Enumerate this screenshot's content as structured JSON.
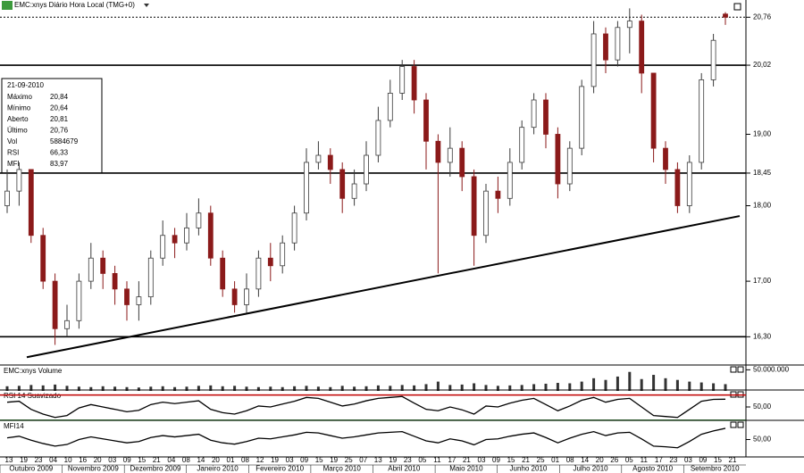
{
  "window_title": "EMC:xnys Diário Hora Local (TMG+0)",
  "info_box": {
    "date": "21-09-2010",
    "rows": [
      [
        "Máximo",
        "20,84"
      ],
      [
        "Mínimo",
        "20,64"
      ],
      [
        "Aberto",
        "20,81"
      ],
      [
        "Último",
        "20,76"
      ],
      [
        "Vol",
        "5884679"
      ],
      [
        "RSI",
        "66,33"
      ],
      [
        "MFI",
        "83,97"
      ]
    ]
  },
  "x_axis": {
    "days": [
      "13",
      "19",
      "23",
      "04",
      "10",
      "16",
      "20",
      "03",
      "09",
      "15",
      "21",
      "04",
      "08",
      "14",
      "20",
      "01",
      "08",
      "12",
      "19",
      "03",
      "09",
      "15",
      "19",
      "25",
      "07",
      "13",
      "19",
      "23",
      "05",
      "11",
      "17",
      "21",
      "03",
      "09",
      "15",
      "21",
      "25",
      "01",
      "08",
      "14",
      "20",
      "26",
      "05",
      "11",
      "17",
      "23",
      "03",
      "09",
      "15",
      "21"
    ],
    "months": [
      "Outubro 2009",
      "Novembro 2009",
      "Dezembro 2009",
      "Janeiro 2010",
      "Fevereiro 2010",
      "Março 2010",
      "Abril 2010",
      "Maio 2010",
      "Junho 2010",
      "Julho 2010",
      "Agosto 2010",
      "Setembro 2010"
    ]
  },
  "chart_data": [
    {
      "type": "candlestick",
      "log_scale": true,
      "up_color": "#3a3a3a",
      "down_color": "#8b1a1a",
      "open": [
        18.0,
        18.2,
        18.5,
        17.6,
        17.0,
        16.4,
        16.5,
        17.0,
        17.3,
        17.1,
        16.9,
        16.7,
        16.8,
        17.3,
        17.6,
        17.5,
        17.7,
        17.9,
        17.3,
        16.9,
        16.7,
        16.9,
        17.3,
        17.2,
        17.5,
        17.9,
        18.6,
        18.7,
        18.5,
        18.1,
        18.3,
        18.7,
        19.2,
        19.6,
        20.0,
        19.5,
        18.9,
        18.6,
        18.8,
        18.4,
        17.6,
        18.2,
        18.1,
        18.6,
        19.1,
        19.5,
        19.0,
        18.3,
        18.8,
        19.7,
        20.5,
        20.1,
        20.6,
        20.7,
        19.9,
        18.8,
        18.5,
        18.0,
        18.6,
        19.8,
        20.81
      ],
      "high": [
        18.5,
        18.6,
        18.5,
        17.7,
        17.1,
        16.7,
        17.1,
        17.5,
        17.4,
        17.2,
        17.0,
        17.0,
        17.4,
        17.8,
        17.7,
        17.9,
        18.1,
        18.0,
        17.4,
        17.0,
        17.1,
        17.4,
        17.5,
        17.6,
        18.0,
        18.8,
        18.9,
        18.8,
        18.6,
        18.5,
        18.9,
        19.4,
        19.8,
        20.1,
        20.1,
        19.6,
        19.0,
        19.1,
        18.9,
        18.5,
        18.3,
        18.4,
        18.8,
        19.2,
        19.6,
        19.6,
        19.1,
        18.9,
        19.8,
        20.7,
        20.6,
        20.7,
        20.9,
        20.8,
        19.9,
        18.9,
        18.6,
        18.7,
        19.9,
        20.5,
        20.84
      ],
      "low": [
        17.9,
        18.0,
        17.5,
        16.9,
        16.2,
        16.3,
        16.4,
        16.9,
        16.9,
        16.7,
        16.5,
        16.5,
        16.7,
        17.2,
        17.3,
        17.4,
        17.6,
        17.2,
        16.8,
        16.6,
        16.6,
        16.8,
        17.0,
        17.1,
        17.4,
        17.8,
        18.5,
        18.3,
        17.9,
        18.0,
        18.2,
        18.6,
        19.1,
        19.5,
        19.3,
        18.5,
        17.1,
        18.4,
        18.2,
        17.2,
        17.5,
        17.9,
        18.0,
        18.5,
        19.0,
        18.8,
        18.1,
        18.2,
        18.7,
        19.6,
        19.9,
        20.0,
        20.2,
        19.6,
        18.6,
        18.3,
        17.9,
        17.9,
        18.5,
        19.7,
        20.64
      ],
      "close": [
        18.2,
        18.5,
        17.6,
        17.0,
        16.4,
        16.5,
        17.0,
        17.3,
        17.1,
        16.9,
        16.7,
        16.8,
        17.3,
        17.6,
        17.5,
        17.7,
        17.9,
        17.3,
        16.9,
        16.7,
        16.9,
        17.3,
        17.2,
        17.5,
        17.9,
        18.6,
        18.7,
        18.5,
        18.1,
        18.3,
        18.7,
        19.2,
        19.6,
        20.0,
        19.5,
        18.9,
        18.6,
        18.8,
        18.4,
        17.6,
        18.2,
        18.1,
        18.6,
        19.1,
        19.5,
        19.0,
        18.3,
        18.8,
        19.7,
        20.5,
        20.1,
        20.6,
        20.7,
        19.9,
        18.8,
        18.5,
        18.0,
        18.6,
        19.8,
        20.4,
        20.76
      ],
      "ylim": [
        16.02,
        20.99
      ],
      "yticks": [
        {
          "value": 20.76,
          "label": "20,76"
        },
        {
          "value": 20.02,
          "label": "20,02"
        },
        {
          "value": 19,
          "label": "19,00"
        },
        {
          "value": 18.45,
          "label": "18,45"
        },
        {
          "value": 18,
          "label": "18,00"
        },
        {
          "value": 17,
          "label": "17,00"
        },
        {
          "value": 16.3,
          "label": "16,30"
        }
      ],
      "hlines": [
        20.02,
        18.45,
        16.3
      ],
      "last_price_line": 20.76,
      "trendline": [
        16.05,
        17.86
      ]
    },
    {
      "type": "bar",
      "title": "EMC:xnys Volume",
      "color": "#333333",
      "values": [
        11000000,
        12000000,
        14000000,
        13000000,
        15000000,
        12000000,
        10000000,
        9000000,
        11000000,
        10000000,
        9000000,
        8000000,
        10000000,
        11000000,
        9000000,
        10000000,
        12000000,
        13000000,
        11000000,
        12000000,
        10000000,
        9000000,
        10000000,
        9000000,
        11000000,
        12000000,
        10000000,
        9000000,
        12000000,
        10000000,
        11000000,
        13000000,
        12000000,
        14000000,
        13000000,
        16000000,
        22000000,
        14000000,
        15000000,
        18000000,
        14000000,
        12000000,
        13000000,
        14000000,
        16000000,
        17000000,
        19000000,
        18000000,
        22000000,
        30000000,
        26000000,
        34000000,
        45000000,
        28000000,
        38000000,
        30000000,
        26000000,
        22000000,
        20000000,
        18000000,
        16000000
      ],
      "ylim": [
        0,
        55000000
      ],
      "yticks": [
        {
          "value": 50000000,
          "label": "50.000.000"
        }
      ]
    },
    {
      "type": "line",
      "title": "RSI 14 Suavizado",
      "color": "#000000",
      "values": [
        60,
        62,
        45,
        35,
        28,
        32,
        48,
        55,
        50,
        45,
        40,
        43,
        55,
        60,
        57,
        60,
        63,
        45,
        38,
        35,
        42,
        52,
        50,
        56,
        62,
        70,
        68,
        60,
        52,
        56,
        63,
        68,
        70,
        72,
        58,
        45,
        42,
        50,
        44,
        35,
        52,
        50,
        58,
        64,
        68,
        55,
        42,
        52,
        64,
        70,
        60,
        66,
        68,
        50,
        32,
        30,
        28,
        45,
        62,
        66,
        66.33
      ],
      "ylim": [
        20,
        80
      ],
      "yticks": [
        {
          "value": 50,
          "label": "50,00"
        }
      ],
      "upper_line": {
        "value": 75,
        "color": "#c00000"
      },
      "lower_line": {
        "value": 22,
        "color": "#2e9b2e"
      }
    },
    {
      "type": "line",
      "title": "MFI14",
      "color": "#000000",
      "values": [
        55,
        60,
        48,
        38,
        30,
        35,
        50,
        58,
        52,
        46,
        40,
        44,
        56,
        62,
        58,
        62,
        66,
        48,
        40,
        36,
        44,
        54,
        52,
        58,
        64,
        72,
        70,
        62,
        54,
        58,
        64,
        70,
        72,
        74,
        60,
        46,
        40,
        52,
        46,
        34,
        50,
        52,
        60,
        66,
        70,
        56,
        40,
        54,
        66,
        74,
        62,
        70,
        72,
        52,
        30,
        28,
        25,
        44,
        66,
        76,
        83.97
      ],
      "ylim": [
        0,
        100
      ],
      "yticks": [
        {
          "value": 50,
          "label": "50,00"
        }
      ]
    }
  ]
}
